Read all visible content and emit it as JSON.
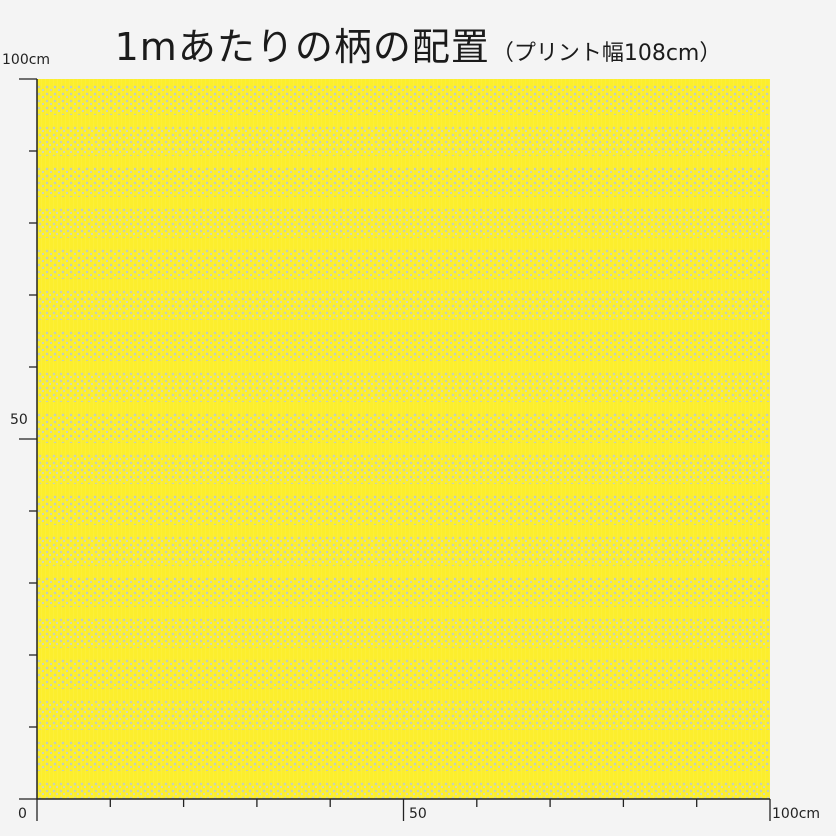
{
  "title": {
    "main": "1mあたりの柄の配置",
    "sub": "（プリント幅108cm）"
  },
  "axes": {
    "y_top_label": "100cm",
    "y_mid_label": "50",
    "x_zero_label": "0",
    "x_mid_label": "50",
    "x_end_label": "100cm"
  },
  "colors": {
    "fabric_background": "#fcee2d",
    "pattern_dots": "#b9c9d7",
    "page_background": "#f4f4f4",
    "ruler": "#222222"
  }
}
